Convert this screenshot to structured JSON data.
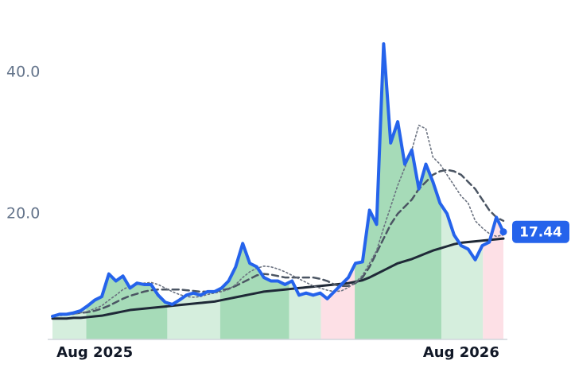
{
  "chart_data": {
    "type": "line",
    "x": [
      -6,
      -5,
      -4,
      -3,
      -2,
      -1,
      0,
      1,
      2,
      3,
      4,
      5,
      6,
      7,
      8,
      9,
      10,
      11,
      12,
      13,
      14,
      15,
      16,
      17,
      18,
      19,
      20,
      21,
      22,
      23,
      24,
      25,
      26,
      27,
      28,
      29,
      30,
      31,
      32,
      33,
      34,
      35,
      36,
      37,
      38,
      39,
      40,
      41,
      42,
      43,
      44,
      45,
      46,
      47,
      48,
      49,
      50,
      51,
      52,
      53,
      54,
      55,
      56,
      57,
      58
    ],
    "xlim": [
      -6,
      58
    ],
    "xticks": [
      {
        "value": 0,
        "label": "Aug 2025"
      },
      {
        "value": 52,
        "label": "Aug 2026"
      }
    ],
    "ylim": [
      2.25,
      45.7
    ],
    "yticks": [
      {
        "value": 20,
        "label": "20.0"
      },
      {
        "value": 40,
        "label": "40.0"
      }
    ],
    "series": [
      {
        "color": "#2563eb",
        "style": "solid",
        "width": 4,
        "values": [
          5.5,
          5.8,
          5.8,
          6.0,
          6.3,
          7.0,
          7.8,
          8.3,
          11.5,
          10.5,
          11.2,
          9.5,
          10.2,
          10.0,
          10.0,
          8.5,
          7.5,
          7.2,
          7.8,
          8.5,
          8.8,
          8.5,
          9.0,
          9.0,
          9.5,
          10.5,
          12.5,
          15.8,
          13.0,
          12.5,
          11.0,
          10.5,
          10.5,
          10.0,
          10.5,
          8.5,
          8.8,
          8.5,
          8.8,
          8.0,
          9.0,
          10.0,
          11.0,
          13.0,
          13.2,
          20.5,
          18.5,
          44.0,
          30.0,
          33.0,
          27.0,
          29.0,
          23.5,
          27.0,
          24.5,
          21.5,
          20.0,
          17.0,
          15.5,
          15.0,
          13.5,
          15.5,
          16.0,
          19.5,
          17.44
        ]
      },
      {
        "color": "#6b7280",
        "style": "dotted",
        "width": 1.6,
        "values": [
          5.5,
          5.6,
          5.7,
          5.8,
          6.0,
          6.2,
          6.6,
          7.0,
          7.8,
          8.5,
          9.3,
          9.8,
          10.0,
          10.2,
          10.3,
          10.0,
          9.5,
          9.0,
          8.6,
          8.3,
          8.2,
          8.3,
          8.6,
          8.8,
          9.0,
          9.3,
          10.0,
          11.0,
          11.8,
          12.3,
          12.6,
          12.5,
          12.2,
          11.8,
          11.3,
          10.8,
          10.3,
          9.8,
          9.5,
          9.2,
          9.0,
          9.1,
          9.6,
          10.3,
          11.3,
          13.0,
          14.8,
          18.0,
          21.0,
          24.0,
          26.5,
          29.0,
          32.5,
          32.0,
          28.0,
          27.0,
          25.5,
          24.0,
          22.5,
          21.5,
          19.0,
          18.0,
          17.2,
          16.8,
          17.0
        ]
      },
      {
        "color": "#4b5563",
        "style": "dashed",
        "width": 2.5,
        "values": [
          5.6,
          5.7,
          5.8,
          5.9,
          6.0,
          6.1,
          6.3,
          6.6,
          7.0,
          7.5,
          8.0,
          8.4,
          8.7,
          9.0,
          9.2,
          9.3,
          9.3,
          9.3,
          9.3,
          9.2,
          9.1,
          9.0,
          9.0,
          9.0,
          9.2,
          9.4,
          9.8,
          10.3,
          10.8,
          11.3,
          11.5,
          11.4,
          11.2,
          11.0,
          11.0,
          11.0,
          11.0,
          11.0,
          10.8,
          10.5,
          10.0,
          9.8,
          9.8,
          10.2,
          11.0,
          12.5,
          14.5,
          16.5,
          18.5,
          20.0,
          21.0,
          22.0,
          23.5,
          24.5,
          25.5,
          26.0,
          26.2,
          26.0,
          25.5,
          24.5,
          23.5,
          22.0,
          20.5,
          19.5,
          19.0
        ]
      },
      {
        "color": "#1f2937",
        "style": "solid",
        "width": 3,
        "values": [
          5.2,
          5.2,
          5.2,
          5.3,
          5.3,
          5.4,
          5.5,
          5.6,
          5.8,
          6.0,
          6.2,
          6.4,
          6.5,
          6.6,
          6.7,
          6.8,
          6.9,
          7.0,
          7.1,
          7.2,
          7.3,
          7.4,
          7.5,
          7.6,
          7.8,
          8.0,
          8.2,
          8.4,
          8.6,
          8.8,
          9.0,
          9.1,
          9.2,
          9.3,
          9.4,
          9.5,
          9.6,
          9.7,
          9.8,
          9.9,
          10.0,
          10.1,
          10.2,
          10.4,
          10.6,
          11.0,
          11.5,
          12.0,
          12.5,
          13.0,
          13.3,
          13.6,
          14.0,
          14.4,
          14.8,
          15.1,
          15.4,
          15.7,
          15.9,
          16.0,
          16.1,
          16.2,
          16.3,
          16.4,
          16.5
        ]
      }
    ],
    "regions": [
      {
        "x": [
          -6,
          -1.2
        ],
        "color": "#d5eedd"
      },
      {
        "x": [
          -1.2,
          10.3
        ],
        "color": "#a6dbb8"
      },
      {
        "x": [
          10.3,
          17.8
        ],
        "color": "#d5eedd"
      },
      {
        "x": [
          17.8,
          27.6
        ],
        "color": "#a6dbb8"
      },
      {
        "x": [
          27.6,
          32.1
        ],
        "color": "#d5eedd"
      },
      {
        "x": [
          32.1,
          36.9
        ],
        "color": "#fde0e6"
      },
      {
        "x": [
          36.9,
          49.2
        ],
        "color": "#a6dbb8"
      },
      {
        "x": [
          49.2,
          55.1
        ],
        "color": "#d5eedd"
      },
      {
        "x": [
          55.1,
          58
        ],
        "color": "#fde0e6"
      }
    ],
    "badge_color": "#2563eb"
  }
}
